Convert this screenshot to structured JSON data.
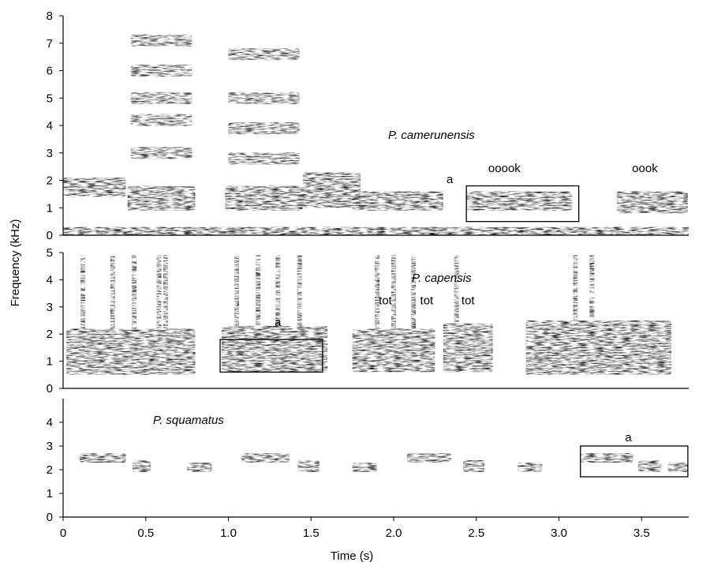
{
  "chart_data": {
    "type": "spectrogram",
    "xlabel": "Time (s)",
    "ylabel": "Frequency (kHz)",
    "xlim": [
      0,
      3.78
    ],
    "x_ticks": [
      "0",
      "0.5",
      "1.0",
      "1.5",
      "2.0",
      "2.5",
      "3.0",
      "3.5"
    ],
    "x_tick_values": [
      0,
      0.5,
      1.0,
      1.5,
      2.0,
      2.5,
      3.0,
      3.5
    ],
    "panels": [
      {
        "species": "P. camerunensis",
        "ylim": [
          0,
          8
        ],
        "y_ticks": [
          "0",
          "1",
          "2",
          "3",
          "4",
          "5",
          "6",
          "7",
          "8"
        ],
        "y_tick_values": [
          0,
          1,
          2,
          3,
          4,
          5,
          6,
          7,
          8
        ],
        "annotations": [
          {
            "text": "a",
            "x": 2.34,
            "y": 1.9
          },
          {
            "text": "ooook",
            "x": 2.67,
            "y": 2.3
          },
          {
            "text": "oook",
            "x": 3.52,
            "y": 2.3
          }
        ],
        "boxes": [
          {
            "x0": 2.44,
            "x1": 3.12,
            "y0": 0.5,
            "y1": 1.8
          }
        ],
        "calls": [
          {
            "t0": 0.0,
            "t1": 0.38,
            "f0": 1.4,
            "f1": 2.1
          },
          {
            "t0": 0.39,
            "t1": 0.8,
            "f0": 0.9,
            "f1": 1.8,
            "harmonics": [
              3.0,
              4.2,
              5.0,
              6.0,
              7.1
            ]
          },
          {
            "t0": 0.98,
            "t1": 1.45,
            "f0": 0.9,
            "f1": 1.8,
            "harmonics": [
              2.8,
              3.9,
              5.0,
              6.6
            ]
          },
          {
            "t0": 1.45,
            "t1": 1.8,
            "f0": 1.0,
            "f1": 2.3
          },
          {
            "t0": 1.75,
            "t1": 2.3,
            "f0": 0.9,
            "f1": 1.6
          },
          {
            "t0": 2.44,
            "t1": 3.08,
            "f0": 0.9,
            "f1": 1.6
          },
          {
            "t0": 3.35,
            "t1": 3.78,
            "f0": 0.8,
            "f1": 1.6
          }
        ]
      },
      {
        "species": "P. capensis",
        "ylim": [
          0,
          5
        ],
        "y_ticks": [
          "0",
          "1",
          "2",
          "3",
          "4",
          "5"
        ],
        "y_tick_values": [
          0,
          1,
          2,
          3,
          4,
          5
        ],
        "annotations": [
          {
            "text": "a",
            "x": 1.3,
            "y": 2.3
          },
          {
            "text": "tot",
            "x": 1.95,
            "y": 3.1
          },
          {
            "text": "tot",
            "x": 2.2,
            "y": 3.1
          },
          {
            "text": "tot",
            "x": 2.45,
            "y": 3.1
          }
        ],
        "boxes": [
          {
            "x0": 0.95,
            "x1": 1.57,
            "y0": 0.6,
            "y1": 1.8
          }
        ],
        "calls": [
          {
            "t0": 0.02,
            "t1": 0.8,
            "f0": 0.5,
            "f1": 2.2,
            "spikes": [
              0.12,
              0.3,
              0.43,
              0.58,
              0.62
            ]
          },
          {
            "t0": 0.96,
            "t1": 1.6,
            "f0": 0.6,
            "f1": 2.3,
            "spikes": [
              1.05,
              1.18,
              1.3,
              1.43
            ]
          },
          {
            "t0": 1.75,
            "t1": 2.25,
            "f0": 0.6,
            "f1": 2.2,
            "spikes": [
              1.9,
              2.0,
              2.12
            ]
          },
          {
            "t0": 2.3,
            "t1": 2.6,
            "f0": 0.6,
            "f1": 2.4,
            "spikes": [
              2.38
            ]
          },
          {
            "t0": 2.8,
            "t1": 3.68,
            "f0": 0.5,
            "f1": 2.5,
            "spikes": [
              3.1,
              3.2
            ]
          }
        ]
      },
      {
        "species": "P. squamatus",
        "ylim": [
          0,
          5
        ],
        "y_ticks": [
          "0",
          "1",
          "2",
          "3",
          "4"
        ],
        "y_tick_values": [
          0,
          1,
          2,
          3,
          4
        ],
        "annotations": [
          {
            "text": "a",
            "x": 3.42,
            "y": 3.2
          }
        ],
        "boxes": [
          {
            "x0": 3.13,
            "x1": 3.78,
            "y0": 1.7,
            "y1": 3.0
          }
        ],
        "calls": [
          {
            "t0": 0.1,
            "t1": 0.38,
            "f0": 2.3,
            "f1": 2.7
          },
          {
            "t0": 0.42,
            "t1": 0.53,
            "f0": 1.9,
            "f1": 2.4
          },
          {
            "t0": 0.75,
            "t1": 0.9,
            "f0": 1.9,
            "f1": 2.3
          },
          {
            "t0": 1.08,
            "t1": 1.37,
            "f0": 2.3,
            "f1": 2.7
          },
          {
            "t0": 1.42,
            "t1": 1.55,
            "f0": 1.9,
            "f1": 2.4
          },
          {
            "t0": 1.75,
            "t1": 1.9,
            "f0": 1.9,
            "f1": 2.3
          },
          {
            "t0": 2.08,
            "t1": 2.35,
            "f0": 2.3,
            "f1": 2.7
          },
          {
            "t0": 2.42,
            "t1": 2.55,
            "f0": 1.9,
            "f1": 2.4
          },
          {
            "t0": 2.75,
            "t1": 2.9,
            "f0": 1.9,
            "f1": 2.3
          },
          {
            "t0": 3.13,
            "t1": 3.45,
            "f0": 2.3,
            "f1": 2.7
          },
          {
            "t0": 3.48,
            "t1": 3.62,
            "f0": 1.9,
            "f1": 2.4
          },
          {
            "t0": 3.66,
            "t1": 3.78,
            "f0": 1.9,
            "f1": 2.3
          }
        ]
      }
    ]
  }
}
